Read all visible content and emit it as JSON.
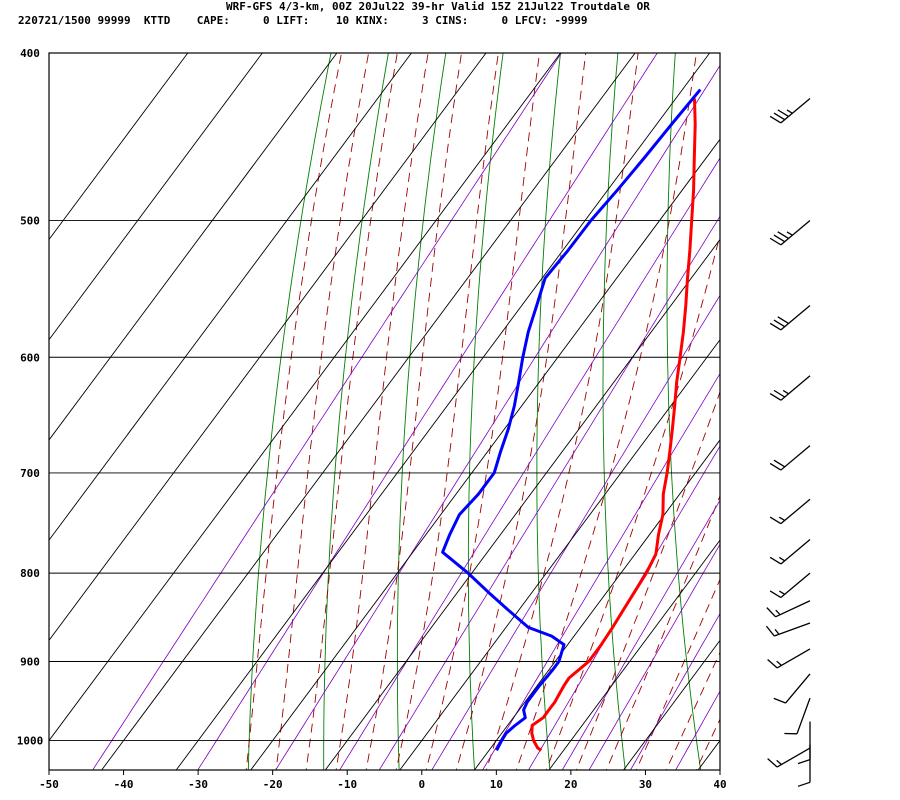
{
  "header": {
    "line1": "WRF-GFS 4/3-km, 00Z 20Jul22 39-hr Valid 15Z 21Jul22 Troutdale OR",
    "line2": "220721/1500 99999  KTTD    CAPE:     0 LIFT:    10 KINX:     3 CINS:     0 LFCV: -9999"
  },
  "chart_data": {
    "type": "line",
    "subtype": "skew-t log-p sounding",
    "xlim": [
      -50,
      40
    ],
    "ylim_hPa": [
      1040,
      400
    ],
    "y_scale": "log",
    "x_ticks": [
      -50,
      -40,
      -30,
      -20,
      -10,
      0,
      10,
      20,
      30,
      40
    ],
    "y_ticks": [
      400,
      500,
      600,
      700,
      800,
      900,
      1000
    ],
    "x_tick_labels": [
      "-50",
      "-40",
      "-30",
      "-20",
      "-10",
      "0",
      "10",
      "20",
      "30",
      "40"
    ],
    "y_tick_labels": [
      "400",
      "500",
      "600",
      "700",
      "800",
      "900",
      "1000"
    ],
    "series": [
      {
        "color": "#ff0000",
        "points": [
          [
            1013,
            17.0
          ],
          [
            1010,
            16.3
          ],
          [
            1000,
            15.0
          ],
          [
            990,
            14.0
          ],
          [
            980,
            13.3
          ],
          [
            970,
            14.0
          ],
          [
            960,
            14.0
          ],
          [
            950,
            14.0
          ],
          [
            940,
            13.8
          ],
          [
            930,
            13.6
          ],
          [
            920,
            13.5
          ],
          [
            910,
            14.0
          ],
          [
            900,
            14.5
          ],
          [
            880,
            14.5
          ],
          [
            860,
            14.3
          ],
          [
            840,
            14.0
          ],
          [
            820,
            13.7
          ],
          [
            800,
            13.4
          ],
          [
            780,
            12.8
          ],
          [
            760,
            11.2
          ],
          [
            740,
            9.8
          ],
          [
            720,
            7.8
          ],
          [
            700,
            6.2
          ],
          [
            680,
            4.4
          ],
          [
            660,
            2.5
          ],
          [
            640,
            0.5
          ],
          [
            620,
            -1.6
          ],
          [
            600,
            -3.6
          ],
          [
            580,
            -5.7
          ],
          [
            560,
            -8.0
          ],
          [
            540,
            -10.5
          ],
          [
            520,
            -13.0
          ],
          [
            500,
            -15.7
          ],
          [
            480,
            -18.5
          ],
          [
            460,
            -21.6
          ],
          [
            440,
            -24.8
          ],
          [
            425,
            -27.5
          ]
        ]
      },
      {
        "color": "#0000ff",
        "points": [
          [
            1013,
            11.0
          ],
          [
            1000,
            10.7
          ],
          [
            990,
            10.6
          ],
          [
            980,
            11.0
          ],
          [
            970,
            11.6
          ],
          [
            960,
            10.6
          ],
          [
            950,
            10.3
          ],
          [
            940,
            10.3
          ],
          [
            930,
            10.3
          ],
          [
            920,
            10.4
          ],
          [
            910,
            10.5
          ],
          [
            900,
            10.5
          ],
          [
            880,
            9.5
          ],
          [
            870,
            7.0
          ],
          [
            860,
            3.0
          ],
          [
            840,
            -1.5
          ],
          [
            820,
            -6.0
          ],
          [
            800,
            -10.5
          ],
          [
            778,
            -16.0
          ],
          [
            760,
            -16.8
          ],
          [
            740,
            -17.5
          ],
          [
            720,
            -17.0
          ],
          [
            700,
            -17.0
          ],
          [
            680,
            -18.3
          ],
          [
            660,
            -19.5
          ],
          [
            640,
            -21.0
          ],
          [
            620,
            -22.8
          ],
          [
            600,
            -24.7
          ],
          [
            580,
            -26.5
          ],
          [
            560,
            -28.0
          ],
          [
            540,
            -29.6
          ],
          [
            520,
            -29.3
          ],
          [
            500,
            -29.2
          ],
          [
            480,
            -28.7
          ],
          [
            460,
            -28.3
          ],
          [
            440,
            -28.0
          ],
          [
            420,
            -27.6
          ]
        ]
      }
    ],
    "wind_barbs": [
      {
        "p": 425,
        "dir": 230,
        "spd": 35
      },
      {
        "p": 500,
        "dir": 230,
        "spd": 35
      },
      {
        "p": 560,
        "dir": 230,
        "spd": 30
      },
      {
        "p": 615,
        "dir": 230,
        "spd": 25
      },
      {
        "p": 675,
        "dir": 230,
        "spd": 20
      },
      {
        "p": 725,
        "dir": 230,
        "spd": 15
      },
      {
        "p": 765,
        "dir": 230,
        "spd": 15
      },
      {
        "p": 800,
        "dir": 230,
        "spd": 15
      },
      {
        "p": 830,
        "dir": 245,
        "spd": 15
      },
      {
        "p": 855,
        "dir": 250,
        "spd": 15
      },
      {
        "p": 885,
        "dir": 240,
        "spd": 15
      },
      {
        "p": 915,
        "dir": 220,
        "spd": 10
      },
      {
        "p": 945,
        "dir": 200,
        "spd": 10
      },
      {
        "p": 975,
        "dir": 180,
        "spd": 10
      },
      {
        "p": 1005,
        "dir": 180,
        "spd": 10
      },
      {
        "p": 1010,
        "dir": 240,
        "spd": 15
      }
    ],
    "colors": {
      "isotherm": "#000000",
      "dry_adiabat": "#008000",
      "moist_adiabat": "#a00000",
      "mixing_ratio": "#8000c0",
      "temperature": "#ff0000",
      "dewpoint": "#0000ff"
    },
    "grid": true
  }
}
